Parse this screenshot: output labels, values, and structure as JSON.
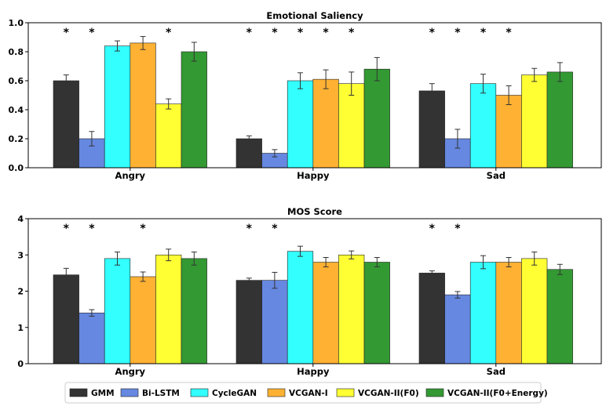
{
  "chart_data": [
    {
      "type": "bar",
      "title": "Emotional Saliency",
      "categories": [
        "Angry",
        "Happy",
        "Sad"
      ],
      "ylim": [
        0,
        1.0
      ],
      "yticks": [
        "0.0",
        "0.2",
        "0.4",
        "0.6",
        "0.8",
        "1.0"
      ],
      "ytick_values": [
        0,
        0.2,
        0.4,
        0.6,
        0.8,
        1.0
      ],
      "xlabel": "",
      "ylabel": "",
      "series": [
        {
          "name": "GMM",
          "values": [
            0.6,
            0.2,
            0.53
          ],
          "errors": [
            0.04,
            0.02,
            0.05
          ],
          "star": [
            true,
            true,
            true
          ]
        },
        {
          "name": "Bi-LSTM",
          "values": [
            0.2,
            0.1,
            0.2
          ],
          "errors": [
            0.05,
            0.025,
            0.065
          ],
          "star": [
            true,
            true,
            true
          ]
        },
        {
          "name": "CycleGAN",
          "values": [
            0.84,
            0.6,
            0.58
          ],
          "errors": [
            0.035,
            0.055,
            0.065
          ],
          "star": [
            false,
            true,
            true
          ]
        },
        {
          "name": "VCGAN-I",
          "values": [
            0.86,
            0.61,
            0.5
          ],
          "errors": [
            0.045,
            0.065,
            0.065
          ],
          "star": [
            false,
            true,
            true
          ]
        },
        {
          "name": "VCGAN-II(F0)",
          "values": [
            0.44,
            0.58,
            0.64
          ],
          "errors": [
            0.035,
            0.08,
            0.045
          ],
          "star": [
            true,
            true,
            false
          ]
        },
        {
          "name": "VCGAN-II(F0+Energy)",
          "values": [
            0.8,
            0.68,
            0.66
          ],
          "errors": [
            0.065,
            0.08,
            0.065
          ],
          "star": [
            false,
            false,
            false
          ]
        }
      ]
    },
    {
      "type": "bar",
      "title": "MOS Score",
      "categories": [
        "Angry",
        "Happy",
        "Sad"
      ],
      "ylim": [
        0,
        4
      ],
      "yticks": [
        "0",
        "1",
        "2",
        "3",
        "4"
      ],
      "ytick_values": [
        0,
        1,
        2,
        3,
        4
      ],
      "xlabel": "",
      "ylabel": "",
      "series": [
        {
          "name": "GMM",
          "values": [
            2.45,
            2.3,
            2.5
          ],
          "errors": [
            0.18,
            0.06,
            0.06
          ],
          "star": [
            true,
            true,
            true
          ]
        },
        {
          "name": "Bi-LSTM",
          "values": [
            1.4,
            2.3,
            1.9
          ],
          "errors": [
            0.09,
            0.22,
            0.09
          ],
          "star": [
            true,
            true,
            true
          ]
        },
        {
          "name": "CycleGAN",
          "values": [
            2.9,
            3.1,
            2.8
          ],
          "errors": [
            0.18,
            0.14,
            0.18
          ],
          "star": [
            false,
            false,
            false
          ]
        },
        {
          "name": "VCGAN-I",
          "values": [
            2.4,
            2.8,
            2.8
          ],
          "errors": [
            0.13,
            0.13,
            0.13
          ],
          "star": [
            true,
            false,
            false
          ]
        },
        {
          "name": "VCGAN-II(F0)",
          "values": [
            3.0,
            3.0,
            2.9
          ],
          "errors": [
            0.16,
            0.11,
            0.18
          ],
          "star": [
            false,
            false,
            false
          ]
        },
        {
          "name": "VCGAN-II(F0+Energy)",
          "values": [
            2.9,
            2.8,
            2.6
          ],
          "errors": [
            0.18,
            0.13,
            0.14
          ],
          "star": [
            false,
            false,
            false
          ]
        }
      ]
    }
  ],
  "legend": {
    "placement": "bottom",
    "entries": [
      "GMM",
      "Bi-LSTM",
      "CycleGAN",
      "VCGAN-I",
      "VCGAN-II(F0)",
      "VCGAN-II(F0+Energy)"
    ]
  },
  "colors": {
    "GMM": "#333333",
    "Bi-LSTM": "#6688e0",
    "CycleGAN": "#33ffff",
    "VCGAN-I": "#ffb133",
    "VCGAN-II(F0)": "#ffff33",
    "VCGAN-II(F0+Energy)": "#339933"
  },
  "significance_marker": "*"
}
